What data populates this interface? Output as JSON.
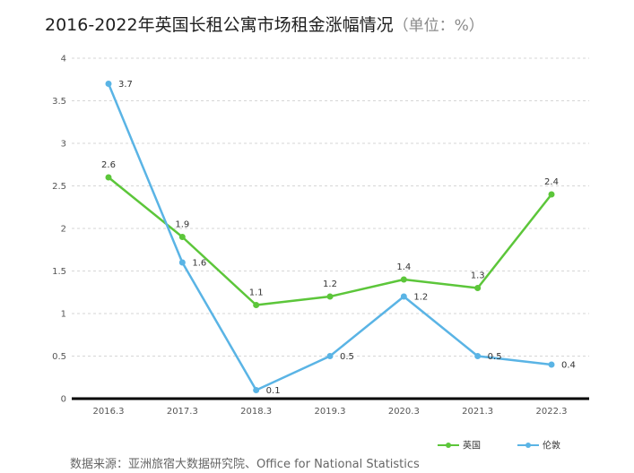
{
  "chart_data": {
    "type": "line",
    "title": "2016-2022年英国长租公寓市场租金涨幅情况",
    "unit_label": "（单位：%）",
    "categories": [
      "2016.3",
      "2017.3",
      "2018.3",
      "2019.3",
      "2020.3",
      "2021.3",
      "2022.3"
    ],
    "ylim": [
      0,
      4
    ],
    "yticks": [
      "0",
      "0.5",
      "1",
      "1.5",
      "2",
      "2.5",
      "3",
      "3.5",
      "4"
    ],
    "grid": true,
    "legend_position": "bottom-right",
    "series": [
      {
        "name": "英国",
        "color": "#5cc63a",
        "values": [
          2.6,
          1.9,
          1.1,
          1.2,
          1.4,
          1.3,
          2.4
        ],
        "labels": [
          "2.6",
          "1.9",
          "1.1",
          "1.2",
          "1.4",
          "1.3",
          "2.4"
        ]
      },
      {
        "name": "伦敦",
        "color": "#5ab4e5",
        "values": [
          3.7,
          1.6,
          0.1,
          0.5,
          1.2,
          0.5,
          0.4
        ],
        "labels": [
          "3.7",
          "1.6",
          "0.1",
          "0.5",
          "1.2",
          "0.5",
          "0.4"
        ]
      }
    ],
    "source": "数据来源：亚洲旅宿大数据研究院、Office for National Statistics"
  }
}
